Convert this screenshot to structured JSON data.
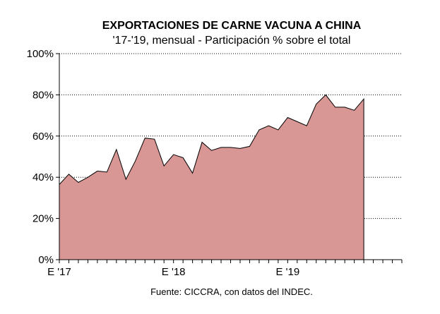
{
  "chart_data": {
    "type": "area",
    "title": "EXPORTACIONES DE CARNE VACUNA A CHINA",
    "subtitle": "'17-'19, mensual - Participación % sobre el total",
    "source": "Fuente: CICCRA, con datos del INDEC.",
    "y_ticks": [
      "0%",
      "20%",
      "40%",
      "60%",
      "80%",
      "100%"
    ],
    "ylim": [
      0,
      100
    ],
    "x_ticks": [
      {
        "label": "E '17",
        "month_index": 0
      },
      {
        "label": "E '18",
        "month_index": 12
      },
      {
        "label": "E '19",
        "month_index": 24
      }
    ],
    "x_months_total": 36,
    "grid": "horizontal dotted",
    "fill_color": "#d89694",
    "values": [
      36.5,
      41.5,
      37.5,
      40,
      43,
      42.5,
      53.5,
      39,
      48,
      59,
      58.5,
      45.5,
      51,
      49.5,
      42,
      57,
      53,
      54.5,
      54.5,
      54,
      55,
      63,
      65,
      63,
      69,
      67,
      65,
      75.5,
      80,
      74,
      74,
      72.5,
      78
    ]
  }
}
